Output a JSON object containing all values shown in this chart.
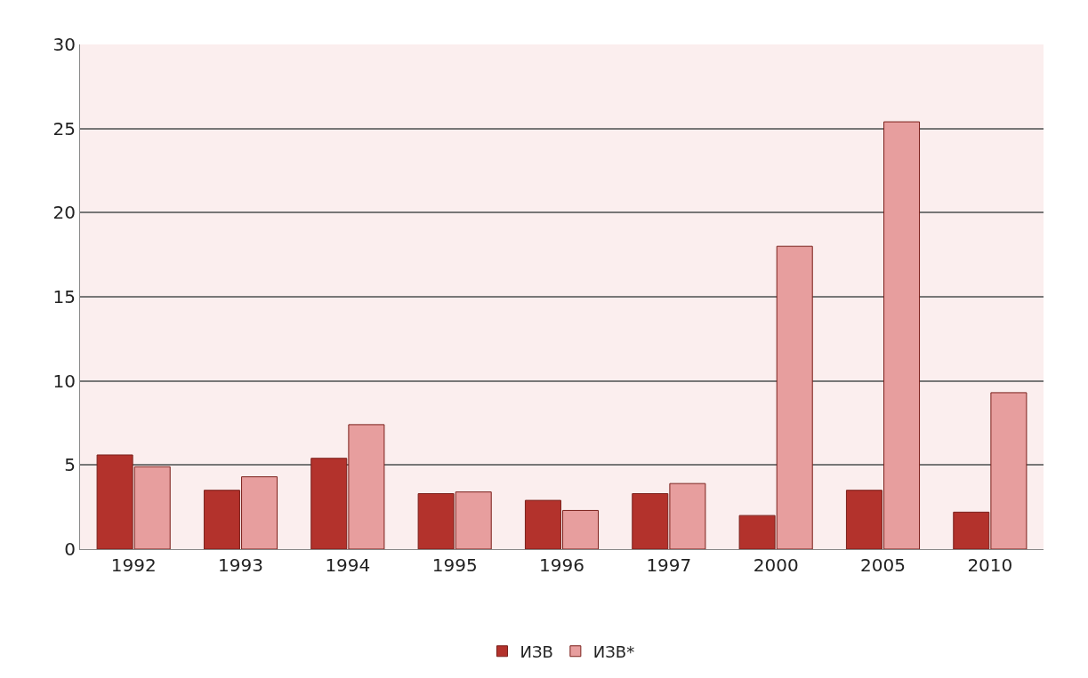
{
  "chart_data": {
    "type": "bar",
    "categories": [
      "1992",
      "1993",
      "1994",
      "1995",
      "1996",
      "1997",
      "2000",
      "2005",
      "2010"
    ],
    "series": [
      {
        "name": "ИЗВ",
        "color": "#b3322c",
        "values": [
          5.6,
          3.5,
          5.4,
          3.3,
          2.9,
          3.3,
          2.0,
          3.5,
          2.2
        ]
      },
      {
        "name": "ИЗВ*",
        "color": "#e79e9e",
        "values": [
          4.9,
          4.3,
          7.4,
          3.4,
          2.3,
          3.9,
          18.0,
          25.4,
          9.3
        ]
      }
    ],
    "ylim": [
      0,
      30
    ],
    "yticks": [
      0,
      5,
      10,
      15,
      20,
      25,
      30
    ],
    "grid": "y",
    "legend": "bottom"
  }
}
